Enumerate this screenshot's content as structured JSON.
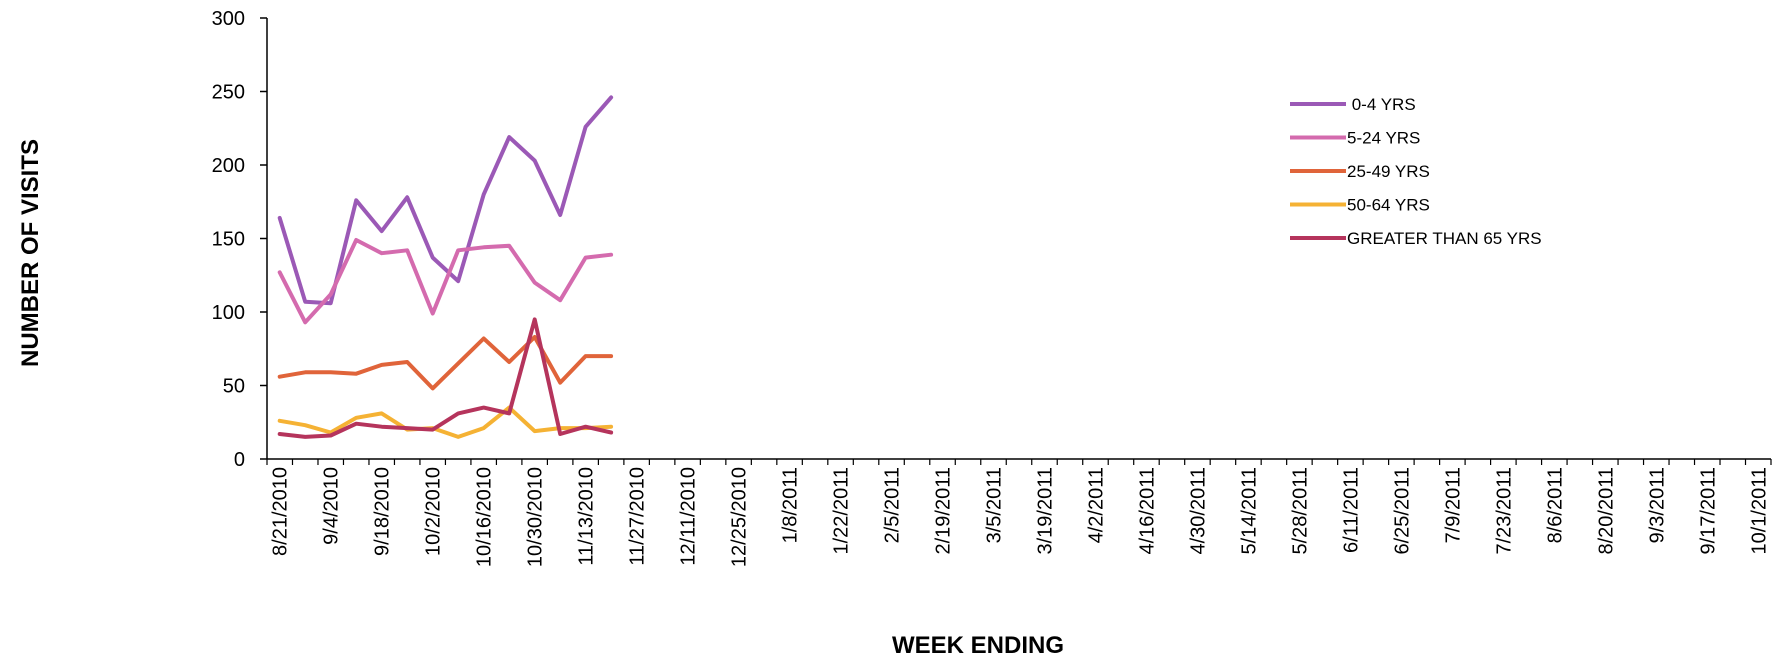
{
  "chart_data": {
    "type": "line",
    "title": "",
    "xlabel": "WEEK ENDING",
    "ylabel": "NUMBER OF VISITS",
    "ylim": [
      0,
      300
    ],
    "yticks": [
      "0",
      "50",
      "100",
      "150",
      "200",
      "250",
      "300"
    ],
    "x_tick_labels": [
      "8/21/2010",
      "9/4/2010",
      "9/18/2010",
      "10/2/2010",
      "10/16/2010",
      "10/30/2010",
      "11/13/2010",
      "11/27/2010",
      "12/11/2010",
      "12/25/2010",
      "1/8/2011",
      "1/22/2011",
      "2/5/2011",
      "2/19/2011",
      "3/5/2011",
      "3/19/2011",
      "4/2/2011",
      "4/16/2011",
      "4/30/2011",
      "5/14/2011",
      "5/28/2011",
      "6/11/2011",
      "6/25/2011",
      "7/9/2011",
      "7/23/2011",
      "8/6/2011",
      "8/20/2011",
      "9/3/2011",
      "9/17/2011",
      "10/1/2011"
    ],
    "x_weeks": [
      "8/21/2010",
      "8/28/2010",
      "9/4/2010",
      "9/11/2010",
      "9/18/2010",
      "9/25/2010",
      "10/2/2010",
      "10/9/2010",
      "10/16/2010",
      "10/23/2010",
      "10/30/2010",
      "11/6/2010",
      "11/13/2010",
      "11/20/2010"
    ],
    "grid": false,
    "legend": "top-right",
    "series": [
      {
        "name": " 0-4 YRS",
        "color": "#9B59B6",
        "values": [
          164,
          107,
          106,
          176,
          155,
          178,
          137,
          121,
          180,
          219,
          203,
          166,
          226,
          246
        ]
      },
      {
        "name": "5-24 YRS",
        "color": "#D46BAE",
        "values": [
          127,
          93,
          112,
          149,
          140,
          142,
          99,
          142,
          144,
          145,
          120,
          108,
          137,
          139
        ]
      },
      {
        "name": "25-49 YRS",
        "color": "#E0643A",
        "values": [
          56,
          59,
          59,
          58,
          64,
          66,
          48,
          65,
          82,
          66,
          83,
          52,
          70,
          70
        ]
      },
      {
        "name": "50-64 YRS",
        "color": "#F5B234",
        "values": [
          26,
          23,
          18,
          28,
          31,
          20,
          21,
          15,
          21,
          35,
          19,
          21,
          21,
          22
        ]
      },
      {
        "name": "GREATER THAN 65 YRS",
        "color": "#B5345C",
        "values": [
          17,
          15,
          16,
          24,
          22,
          21,
          20,
          31,
          35,
          31,
          95,
          17,
          22,
          18
        ]
      }
    ]
  }
}
